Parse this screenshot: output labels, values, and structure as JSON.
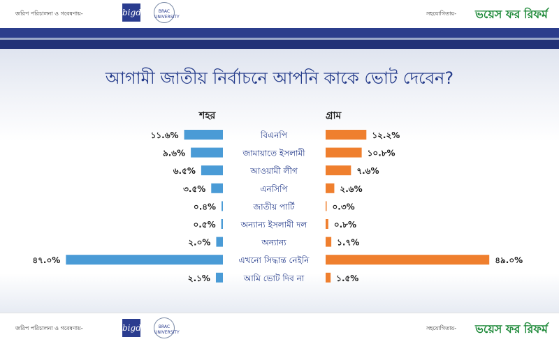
{
  "header": {
    "sponsor_left": "জরিপ পরিচালনা ও গবেষণায়-",
    "bigd_logo_text": "bigd",
    "brac_logo_text": "BRAC UNIVERSITY",
    "sponsor_right": "সহযোগিতায়-",
    "vr_logo_text": "ভয়েস ফর রিফর্ম"
  },
  "footer": {
    "sponsor_left": "জরিপ পরিচালনা ও গবেষণায়-",
    "bigd_logo_text": "bigd",
    "brac_logo_text": "BRAC UNIVERSITY",
    "sponsor_right": "সহযোগিতায়-",
    "vr_logo_text": "ভয়েস ফর রিফর্ম"
  },
  "colors": {
    "urban_bar": "#4a9bd6",
    "rural_bar": "#ef7f2e",
    "title": "#233a8a",
    "stripe": "#2b3d8c"
  },
  "chart_data": {
    "type": "bar",
    "title": "আগামী জাতীয় নির্বাচনে আপনি কাকে ভোট দেবেন?",
    "categories": [
      "বিএনপি",
      "জামায়াতে ইসলামী",
      "আওয়ামী লীগ",
      "এনসিপি",
      "জাতীয় পার্টি",
      "অন্যান্য ইসলামী দল",
      "অন্যান্য",
      "এখনো সিদ্ধান্ত নেইনি",
      "আমি ভোট দিব না"
    ],
    "series": [
      {
        "name": "শহর",
        "values": [
          11.6,
          9.6,
          6.5,
          3.5,
          0.4,
          0.5,
          2.0,
          47.0,
          2.1
        ],
        "labels": [
          "১১.৬%",
          "৯.৬%",
          "৬.৫%",
          "৩.৫%",
          "০.৪%",
          "০.৫%",
          "২.০%",
          "৪৭.০%",
          "২.১%"
        ]
      },
      {
        "name": "গ্রাম",
        "values": [
          12.2,
          10.8,
          7.6,
          2.6,
          0.3,
          0.8,
          1.7,
          49.0,
          1.5
        ],
        "labels": [
          "১২.২%",
          "১০.৮%",
          "৭.৬%",
          "২.৬%",
          "০.৩%",
          "০.৮%",
          "১.৭%",
          "৪৯.০%",
          "১.৫%"
        ]
      }
    ],
    "xlim": [
      0,
      50
    ],
    "legend": "column-headers"
  }
}
